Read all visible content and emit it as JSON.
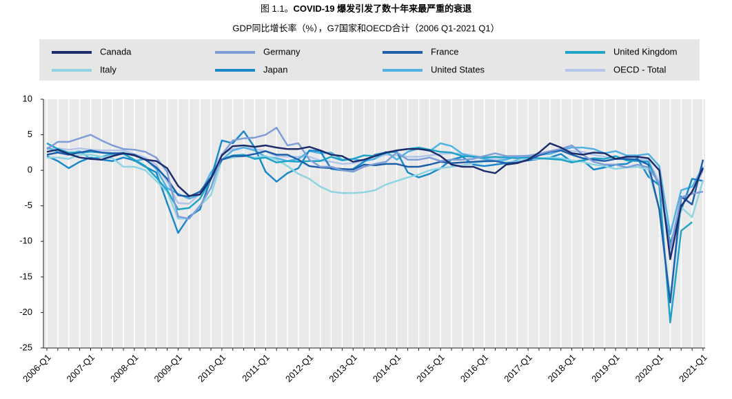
{
  "chart_data": {
    "type": "line",
    "figure_label": "图 1.1。",
    "title": "COVID-19 爆发引发了数十年来最严重的衰退",
    "subtitle": "GDP同比增长率（%），G7国家和OECD合计（2006 Q1-2021 Q1）",
    "legend": "top",
    "grid": true,
    "categories": [
      "2006-Q1",
      null,
      null,
      null,
      "2007-Q1",
      null,
      null,
      null,
      "2008-Q1",
      null,
      null,
      null,
      "2009-Q1",
      null,
      null,
      null,
      "2010-Q1",
      null,
      null,
      null,
      "2011-Q1",
      null,
      null,
      null,
      "2012-Q1",
      null,
      null,
      null,
      "2013-Q1",
      null,
      null,
      null,
      "2014-Q1",
      null,
      null,
      null,
      "2015-Q1",
      null,
      null,
      null,
      "2016-Q1",
      null,
      null,
      null,
      "2017-Q1",
      null,
      null,
      null,
      "2018-Q1",
      null,
      null,
      null,
      "2019-Q1",
      null,
      null,
      null,
      "2020-Q1",
      null,
      null,
      null,
      "2021-Q1"
    ],
    "ylim": [
      -25,
      10
    ],
    "yticks": [
      10,
      5,
      0,
      -5,
      -10,
      -15,
      -20,
      -25
    ],
    "series": [
      {
        "name": "Canada",
        "color": "#1d2d6b",
        "values": [
          2.6,
          2.9,
          2.3,
          1.8,
          1.6,
          1.5,
          2.0,
          2.4,
          2.1,
          1.5,
          1.3,
          0.3,
          -2.2,
          -3.6,
          -3.4,
          -1.2,
          2.1,
          3.4,
          3.5,
          3.3,
          3.5,
          3.2,
          3.0,
          3.0,
          3.3,
          2.8,
          2.2,
          2.0,
          1.2,
          1.5,
          2.0,
          2.5,
          2.8,
          3.0,
          3.0,
          2.8,
          2.0,
          0.8,
          0.5,
          0.5,
          -0.1,
          -0.4,
          0.8,
          1.0,
          1.5,
          2.5,
          3.8,
          3.2,
          2.4,
          2.2,
          2.5,
          2.4,
          1.6,
          1.9,
          1.9,
          1.7,
          0.0,
          -12.5,
          -5.0,
          -3.0,
          0.3
        ]
      },
      {
        "name": "Germany",
        "color": "#7f9dd6",
        "values": [
          3.0,
          4.0,
          4.0,
          4.5,
          5.0,
          4.2,
          3.5,
          3.0,
          2.9,
          2.6,
          1.8,
          -0.2,
          -6.5,
          -6.8,
          -5.0,
          -2.5,
          2.2,
          4.2,
          4.5,
          4.6,
          5.0,
          6.0,
          3.5,
          3.8,
          1.5,
          0.5,
          0.5,
          0.0,
          -0.2,
          0.5,
          0.9,
          1.2,
          2.5,
          1.5,
          1.5,
          1.8,
          1.3,
          1.5,
          1.5,
          1.6,
          2.0,
          2.4,
          2.0,
          2.0,
          2.0,
          2.3,
          2.7,
          3.0,
          3.5,
          2.2,
          1.2,
          0.8,
          0.8,
          0.4,
          0.8,
          0.4,
          -1.8,
          -11.0,
          -3.8,
          -3.3,
          -3.0
        ]
      },
      {
        "name": "France",
        "color": "#1f5ea8",
        "values": [
          2.2,
          2.5,
          2.2,
          2.5,
          2.8,
          2.5,
          2.4,
          2.4,
          2.2,
          1.5,
          0.4,
          -1.2,
          -3.5,
          -3.7,
          -3.0,
          -1.0,
          1.5,
          2.0,
          2.0,
          2.3,
          2.7,
          2.2,
          2.2,
          1.5,
          0.6,
          0.4,
          0.3,
          0.2,
          0.1,
          0.8,
          0.7,
          0.9,
          0.9,
          0.5,
          0.5,
          0.8,
          1.2,
          1.0,
          1.1,
          1.2,
          1.3,
          1.3,
          1.0,
          1.1,
          1.4,
          2.1,
          2.6,
          2.8,
          2.2,
          1.7,
          1.5,
          1.3,
          1.6,
          1.6,
          1.5,
          0.8,
          -5.5,
          -18.6,
          -3.7,
          -4.8,
          1.5
        ]
      },
      {
        "name": "United Kingdom",
        "color": "#1fa3c6",
        "values": [
          3.8,
          3.0,
          2.5,
          2.5,
          2.6,
          2.5,
          2.3,
          2.3,
          1.5,
          0.6,
          -1.0,
          -2.8,
          -5.5,
          -5.3,
          -4.0,
          -1.2,
          1.5,
          2.1,
          2.2,
          1.6,
          1.8,
          1.1,
          1.3,
          1.2,
          1.3,
          1.3,
          1.9,
          1.4,
          1.6,
          2.1,
          2.0,
          2.4,
          2.8,
          3.0,
          3.2,
          2.9,
          2.6,
          2.5,
          2.0,
          1.9,
          1.8,
          1.9,
          1.8,
          1.7,
          1.8,
          1.7,
          1.6,
          1.5,
          1.1,
          1.4,
          1.7,
          1.6,
          2.0,
          1.4,
          1.3,
          1.2,
          -2.2,
          -21.4,
          -8.5,
          -7.3,
          null
        ]
      },
      {
        "name": "Italy",
        "color": "#8fd4e2",
        "values": [
          1.8,
          1.8,
          1.6,
          2.2,
          2.2,
          1.9,
          1.7,
          0.5,
          0.5,
          0.0,
          -1.5,
          -3.0,
          -6.8,
          -6.8,
          -5.0,
          -3.5,
          1.5,
          1.8,
          2.0,
          1.8,
          2.0,
          1.5,
          0.6,
          -0.5,
          -1.2,
          -2.3,
          -3.0,
          -3.2,
          -3.2,
          -3.1,
          -2.8,
          -2.0,
          -1.5,
          -1.0,
          -0.6,
          0.0,
          0.3,
          0.5,
          0.7,
          1.0,
          1.2,
          1.3,
          1.1,
          1.3,
          1.6,
          1.6,
          1.8,
          1.7,
          1.4,
          1.2,
          0.8,
          0.6,
          0.2,
          0.4,
          0.5,
          0.1,
          -5.5,
          -18.0,
          -5.2,
          -6.6,
          -1.4
        ]
      },
      {
        "name": "Japan",
        "color": "#1a88ca",
        "values": [
          2.0,
          1.3,
          0.3,
          1.2,
          1.8,
          1.5,
          1.3,
          1.8,
          1.4,
          0.5,
          -0.3,
          -4.6,
          -8.8,
          -6.5,
          -5.5,
          -1.2,
          4.2,
          3.8,
          5.5,
          3.2,
          -0.2,
          -1.6,
          -0.4,
          0.3,
          2.8,
          2.7,
          0.2,
          0.0,
          0.2,
          1.2,
          2.2,
          2.5,
          2.6,
          -0.3,
          -1.0,
          -0.5,
          0.3,
          1.5,
          1.9,
          0.8,
          0.6,
          0.8,
          1.0,
          1.4,
          1.4,
          1.6,
          1.8,
          2.3,
          1.2,
          1.4,
          0.1,
          0.4,
          0.8,
          0.9,
          1.7,
          -0.9,
          -2.1,
          -10.3,
          -5.6,
          -1.2,
          -1.5
        ]
      },
      {
        "name": "United States",
        "color": "#4fb2e3",
        "values": [
          3.2,
          2.6,
          2.3,
          2.7,
          1.6,
          1.9,
          2.3,
          2.5,
          1.3,
          1.6,
          0.2,
          -2.5,
          -3.3,
          -4.0,
          -3.4,
          -0.3,
          1.5,
          2.8,
          3.2,
          2.8,
          1.9,
          1.7,
          1.3,
          1.6,
          2.7,
          2.4,
          2.5,
          1.5,
          1.6,
          1.3,
          1.6,
          2.6,
          1.5,
          2.6,
          3.1,
          2.7,
          3.8,
          3.4,
          2.3,
          1.9,
          1.6,
          1.3,
          1.5,
          2.0,
          2.0,
          2.2,
          2.3,
          2.8,
          3.2,
          3.2,
          3.0,
          2.4,
          2.7,
          2.1,
          2.1,
          2.3,
          0.6,
          -9.0,
          -2.8,
          -2.3,
          0.5
        ]
      },
      {
        "name": "OECD - Total",
        "color": "#b3c6ea",
        "values": [
          3.0,
          3.1,
          2.9,
          3.1,
          2.9,
          2.8,
          2.8,
          2.8,
          2.3,
          1.8,
          0.8,
          -1.6,
          -4.6,
          -4.7,
          -3.3,
          -0.4,
          2.3,
          3.0,
          3.2,
          3.0,
          2.7,
          2.0,
          1.9,
          1.9,
          1.9,
          1.4,
          1.2,
          0.9,
          1.0,
          1.3,
          1.7,
          2.2,
          2.1,
          1.9,
          1.9,
          2.1,
          2.3,
          2.4,
          2.3,
          2.1,
          1.8,
          1.6,
          1.7,
          1.9,
          2.1,
          2.3,
          2.6,
          2.8,
          2.7,
          2.6,
          2.2,
          1.9,
          1.6,
          1.6,
          1.6,
          1.4,
          -1.6,
          -11.6,
          -4.0,
          -3.3,
          0.0
        ]
      }
    ]
  }
}
